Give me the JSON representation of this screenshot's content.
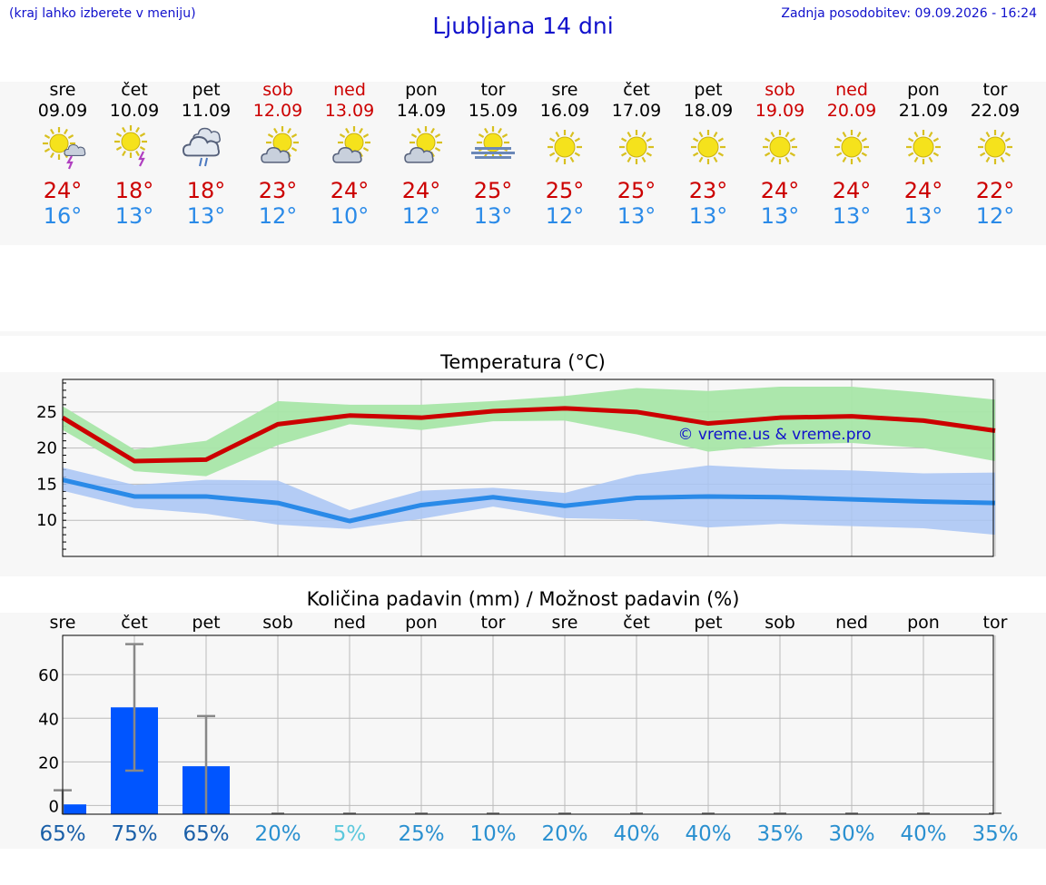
{
  "header": {
    "hint": "(kraj lahko izberete v meniju)",
    "title": "Ljubljana 14 dni",
    "updated": "Zadnja posodobitev: 09.09.2026 - 16:24"
  },
  "days": [
    {
      "name": "sre",
      "date": "09.09",
      "weekend": false,
      "icon": "sun-cloud-thunder",
      "hi": "24°",
      "lo": "16°"
    },
    {
      "name": "čet",
      "date": "10.09",
      "weekend": false,
      "icon": "sun-thunder",
      "hi": "18°",
      "lo": "13°"
    },
    {
      "name": "pet",
      "date": "11.09",
      "weekend": false,
      "icon": "cloud-rain",
      "hi": "18°",
      "lo": "13°"
    },
    {
      "name": "sob",
      "date": "12.09",
      "weekend": true,
      "icon": "sun-cloud",
      "hi": "23°",
      "lo": "12°"
    },
    {
      "name": "ned",
      "date": "13.09",
      "weekend": true,
      "icon": "sun-cloud",
      "hi": "24°",
      "lo": "10°"
    },
    {
      "name": "pon",
      "date": "14.09",
      "weekend": false,
      "icon": "sun-cloud",
      "hi": "24°",
      "lo": "12°"
    },
    {
      "name": "tor",
      "date": "15.09",
      "weekend": false,
      "icon": "sun-fog",
      "hi": "25°",
      "lo": "13°"
    },
    {
      "name": "sre",
      "date": "16.09",
      "weekend": false,
      "icon": "sun",
      "hi": "25°",
      "lo": "12°"
    },
    {
      "name": "čet",
      "date": "17.09",
      "weekend": false,
      "icon": "sun",
      "hi": "25°",
      "lo": "13°"
    },
    {
      "name": "pet",
      "date": "18.09",
      "weekend": false,
      "icon": "sun",
      "hi": "23°",
      "lo": "13°"
    },
    {
      "name": "sob",
      "date": "19.09",
      "weekend": true,
      "icon": "sun",
      "hi": "24°",
      "lo": "13°"
    },
    {
      "name": "ned",
      "date": "20.09",
      "weekend": true,
      "icon": "sun",
      "hi": "24°",
      "lo": "13°"
    },
    {
      "name": "pon",
      "date": "21.09",
      "weekend": false,
      "icon": "sun",
      "hi": "24°",
      "lo": "13°"
    },
    {
      "name": "tor",
      "date": "22.09",
      "weekend": false,
      "icon": "sun",
      "hi": "22°",
      "lo": "12°"
    }
  ],
  "colors": {
    "hi": "#cc0000",
    "lo": "#2a8ae8",
    "hiBand": "#a8e6a8",
    "loBand": "#a8c4f4",
    "bar": "#0055ff",
    "err": "#888888",
    "weekend": "#cc0000",
    "link": "#1010cc"
  },
  "chart_data": [
    {
      "type": "line",
      "title": "Temperatura (°C)",
      "watermark": "© vreme.us & vreme.pro",
      "ylim": [
        5,
        29.5
      ],
      "yticks": [
        10,
        15,
        20,
        25
      ],
      "grid": true,
      "series": [
        {
          "name": "max",
          "values": [
            24.2,
            18.2,
            18.4,
            23.3,
            24.5,
            24.2,
            25.1,
            25.5,
            25.0,
            23.4,
            24.2,
            24.4,
            23.8,
            22.4
          ],
          "band_low": [
            22.5,
            16.8,
            16.1,
            20.4,
            23.3,
            22.5,
            23.7,
            23.8,
            21.9,
            19.5,
            20.5,
            20.7,
            20.0,
            18.2
          ],
          "band_high": [
            25.8,
            19.8,
            21.0,
            26.5,
            26.0,
            26.0,
            26.5,
            27.2,
            28.3,
            27.9,
            28.5,
            28.5,
            27.7,
            26.7
          ]
        },
        {
          "name": "min",
          "values": [
            15.6,
            13.3,
            13.3,
            12.4,
            9.9,
            12.1,
            13.2,
            12.0,
            13.1,
            13.3,
            13.2,
            12.9,
            12.6,
            12.4
          ],
          "band_low": [
            14.1,
            11.7,
            10.9,
            9.4,
            8.8,
            10.2,
            11.9,
            10.3,
            10.1,
            9.0,
            9.5,
            9.2,
            8.9,
            8.0
          ],
          "band_high": [
            17.3,
            14.9,
            15.6,
            15.5,
            11.4,
            14.1,
            14.5,
            13.8,
            16.3,
            17.6,
            17.1,
            16.9,
            16.5,
            16.6
          ]
        }
      ]
    },
    {
      "type": "bar",
      "title": "Količina padavin (mm) / Možnost padavin (%)",
      "ylim": [
        -4,
        78
      ],
      "yticks": [
        0,
        20,
        40,
        60
      ],
      "grid": true,
      "categories": [
        "sre",
        "čet",
        "pet",
        "sob",
        "ned",
        "pon",
        "tor",
        "sre",
        "čet",
        "pet",
        "sob",
        "ned",
        "pon",
        "tor"
      ],
      "values": [
        0.5,
        45,
        18,
        0,
        0,
        0,
        0,
        0,
        0,
        0,
        0,
        0,
        0,
        0
      ],
      "error_high": [
        7,
        74,
        41,
        0,
        0,
        0,
        0,
        0,
        0,
        0,
        0,
        0,
        0,
        0
      ],
      "error_low": [
        0,
        16,
        0,
        0,
        0,
        0,
        0,
        0,
        0,
        0,
        0,
        0,
        0,
        0
      ],
      "chance": [
        "65%",
        "75%",
        "65%",
        "20%",
        "5%",
        "25%",
        "10%",
        "20%",
        "40%",
        "40%",
        "35%",
        "30%",
        "40%",
        "35%"
      ],
      "chance_colors": [
        "#1a5fa8",
        "#1a5fa8",
        "#1a5fa8",
        "#2a90d0",
        "#5cc8dc",
        "#2a90d0",
        "#2a90d0",
        "#2a90d0",
        "#2a90d0",
        "#2a90d0",
        "#2a90d0",
        "#2a90d0",
        "#2a90d0",
        "#2a90d0"
      ]
    }
  ]
}
